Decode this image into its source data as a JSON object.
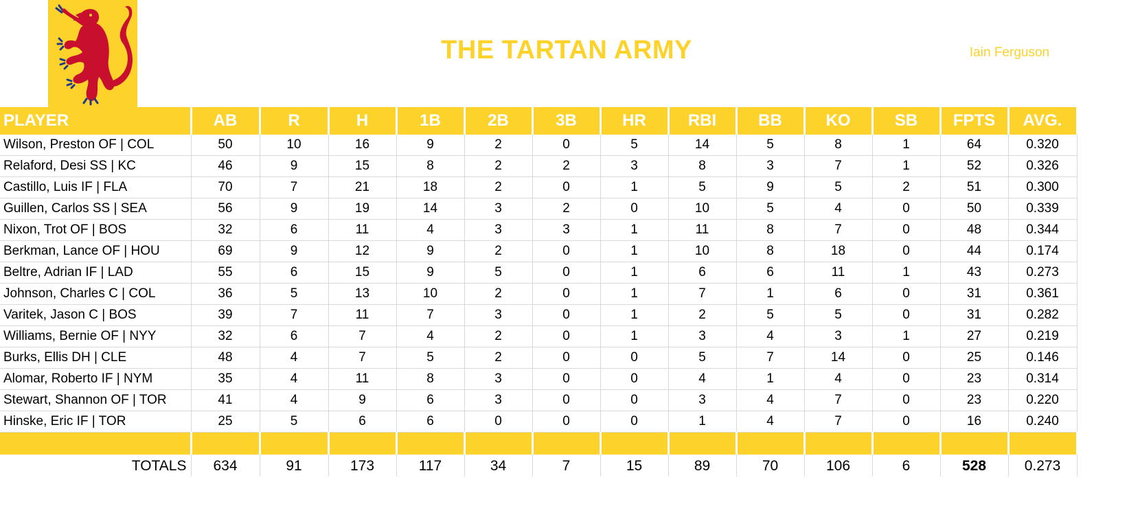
{
  "team": {
    "title": "THE TARTAN ARMY",
    "manager": "Iain Ferguson",
    "logo_icon": "lion-rampant-icon",
    "colors": {
      "accent": "#fdd22a",
      "lion": "#c8102e",
      "claws": "#1e3a8a"
    }
  },
  "table": {
    "headers": [
      "PLAYER",
      "AB",
      "R",
      "H",
      "1B",
      "2B",
      "3B",
      "HR",
      "RBI",
      "BB",
      "KO",
      "SB",
      "FPTS",
      "AVG."
    ],
    "rows": [
      [
        "Wilson, Preston OF | COL",
        "50",
        "10",
        "16",
        "9",
        "2",
        "0",
        "5",
        "14",
        "5",
        "8",
        "1",
        "64",
        "0.320"
      ],
      [
        "Relaford, Desi SS | KC",
        "46",
        "9",
        "15",
        "8",
        "2",
        "2",
        "3",
        "8",
        "3",
        "7",
        "1",
        "52",
        "0.326"
      ],
      [
        "Castillo, Luis IF | FLA",
        "70",
        "7",
        "21",
        "18",
        "2",
        "0",
        "1",
        "5",
        "9",
        "5",
        "2",
        "51",
        "0.300"
      ],
      [
        "Guillen, Carlos SS | SEA",
        "56",
        "9",
        "19",
        "14",
        "3",
        "2",
        "0",
        "10",
        "5",
        "4",
        "0",
        "50",
        "0.339"
      ],
      [
        "Nixon, Trot OF | BOS",
        "32",
        "6",
        "11",
        "4",
        "3",
        "3",
        "1",
        "11",
        "8",
        "7",
        "0",
        "48",
        "0.344"
      ],
      [
        "Berkman, Lance OF | HOU",
        "69",
        "9",
        "12",
        "9",
        "2",
        "0",
        "1",
        "10",
        "8",
        "18",
        "0",
        "44",
        "0.174"
      ],
      [
        "Beltre, Adrian IF | LAD",
        "55",
        "6",
        "15",
        "9",
        "5",
        "0",
        "1",
        "6",
        "6",
        "11",
        "1",
        "43",
        "0.273"
      ],
      [
        "Johnson, Charles C | COL",
        "36",
        "5",
        "13",
        "10",
        "2",
        "0",
        "1",
        "7",
        "1",
        "6",
        "0",
        "31",
        "0.361"
      ],
      [
        "Varitek, Jason C | BOS",
        "39",
        "7",
        "11",
        "7",
        "3",
        "0",
        "1",
        "2",
        "5",
        "5",
        "0",
        "31",
        "0.282"
      ],
      [
        "Williams, Bernie OF | NYY",
        "32",
        "6",
        "7",
        "4",
        "2",
        "0",
        "1",
        "3",
        "4",
        "3",
        "1",
        "27",
        "0.219"
      ],
      [
        "Burks, Ellis DH | CLE",
        "48",
        "4",
        "7",
        "5",
        "2",
        "0",
        "0",
        "5",
        "7",
        "14",
        "0",
        "25",
        "0.146"
      ],
      [
        "Alomar, Roberto IF | NYM",
        "35",
        "4",
        "11",
        "8",
        "3",
        "0",
        "0",
        "4",
        "1",
        "4",
        "0",
        "23",
        "0.314"
      ],
      [
        "Stewart, Shannon OF | TOR",
        "41",
        "4",
        "9",
        "6",
        "3",
        "0",
        "0",
        "3",
        "4",
        "7",
        "0",
        "23",
        "0.220"
      ],
      [
        "Hinske, Eric IF | TOR",
        "25",
        "5",
        "6",
        "6",
        "0",
        "0",
        "0",
        "1",
        "4",
        "7",
        "0",
        "16",
        "0.240"
      ]
    ],
    "totals": [
      "TOTALS",
      "634",
      "91",
      "173",
      "117",
      "34",
      "7",
      "15",
      "89",
      "70",
      "106",
      "6",
      "528",
      "0.273"
    ]
  }
}
